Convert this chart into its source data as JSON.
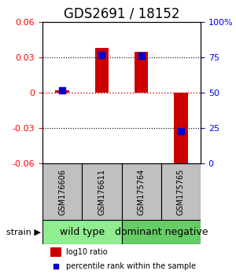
{
  "title": "GDS2691 / 18152",
  "samples": [
    "GSM176606",
    "GSM176611",
    "GSM175764",
    "GSM175765"
  ],
  "log10_ratio": [
    0.002,
    0.038,
    0.035,
    -0.065
  ],
  "percentile_rank": [
    52,
    77,
    76,
    23
  ],
  "ylim": [
    -0.06,
    0.06
  ],
  "yticks_left": [
    -0.06,
    -0.03,
    0,
    0.03,
    0.06
  ],
  "yticks_right": [
    0,
    25,
    50,
    75,
    100
  ],
  "groups": [
    {
      "label": "wild type",
      "samples": [
        0,
        1
      ],
      "color": "#90EE90"
    },
    {
      "label": "dominant negative",
      "samples": [
        2,
        3
      ],
      "color": "#66CC66"
    }
  ],
  "group_label": "strain",
  "bar_color": "#CC0000",
  "dot_color": "#0000CC",
  "zero_line_color": "#CC0000",
  "zero_line_style": ":",
  "grid_color": "#000000",
  "grid_style": ":",
  "bar_width": 0.35,
  "dot_size": 40,
  "legend_bar_color": "#CC0000",
  "legend_dot_color": "#0000CC",
  "legend_label_bar": "log10 ratio",
  "legend_label_dot": "percentile rank within the sample",
  "sample_box_color": "#C0C0C0",
  "background_color": "#FFFFFF",
  "title_fontsize": 12,
  "tick_fontsize": 8,
  "sample_fontsize": 7,
  "group_fontsize": 9
}
